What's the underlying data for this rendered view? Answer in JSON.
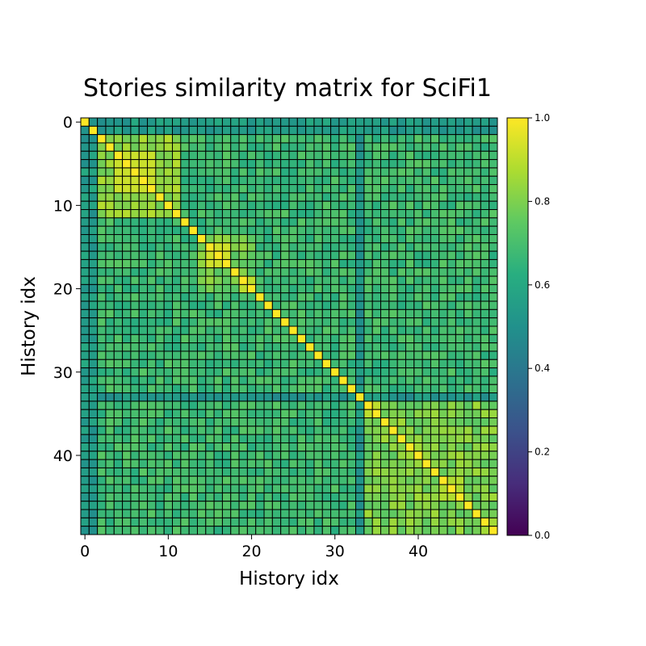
{
  "chart_data": {
    "type": "heatmap",
    "title": "Stories similarity matrix for SciFi1",
    "xlabel": "History idx",
    "ylabel": "History idx",
    "n": 50,
    "x_ticks": [
      0,
      10,
      20,
      30,
      40
    ],
    "y_ticks": [
      0,
      10,
      20,
      30,
      40
    ],
    "colorbar": {
      "min": 0.0,
      "max": 1.0,
      "ticks": [
        "0.0",
        "0.2",
        "0.4",
        "0.6",
        "0.8",
        "1.0"
      ]
    },
    "colormap": "viridis",
    "grid": true,
    "diagonal_value": 1.0,
    "clusters": [
      {
        "range": [
          4,
          8
        ],
        "value": 0.92
      },
      {
        "range": [
          15,
          17
        ],
        "value": 0.93
      },
      {
        "range": [
          19,
          20
        ],
        "value": 0.9
      },
      {
        "range": [
          34,
          35
        ],
        "value": 0.9
      },
      {
        "range": [
          43,
          45
        ],
        "value": 0.88
      }
    ],
    "blocks": [
      {
        "range": [
          2,
          11
        ],
        "value": 0.83
      },
      {
        "range": [
          14,
          20
        ],
        "value": 0.78
      },
      {
        "range": [
          34,
          49
        ],
        "value": 0.8
      }
    ],
    "low_similarity_rows": [
      {
        "index": 0,
        "value": 0.55
      },
      {
        "index": 1,
        "value": 0.55
      },
      {
        "index": 33,
        "value": 0.52
      }
    ],
    "baseline_value": 0.68
  }
}
